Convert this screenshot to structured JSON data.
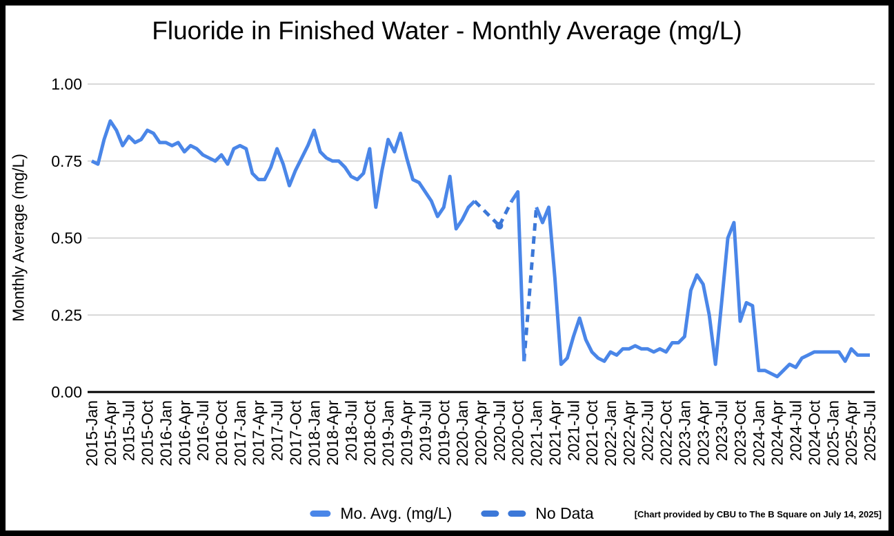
{
  "title": "Fluoride in Finished Water - Monthly Average (mg/L)",
  "footnote": "[Chart provided by CBU to The B Square on July 14, 2025]",
  "legend": {
    "series_label": "Mo. Avg. (mg/L)",
    "no_data_label": "No Data"
  },
  "colors": {
    "line": "#4a86e8",
    "no_data": "#3c78d8",
    "gridline": "#cccccc",
    "axis": "#000000"
  },
  "chart_data": {
    "type": "line",
    "title": "Fluoride in Finished Water - Monthly Average (mg/L)",
    "xlabel": "",
    "ylabel": "Monthly Average (mg/L)",
    "ylim": [
      0,
      1.0
    ],
    "yticks": [
      0,
      0.25,
      0.5,
      0.75,
      1.0
    ],
    "x_tick_interval": 3,
    "grid": true,
    "legend_position": "bottom",
    "series_name": "Mo. Avg. (mg/L)",
    "no_data_note": "Dashed segments bridge months with no data; dot marks isolated 2020-Jul value",
    "marker_point": [
      "2020-Jul",
      0.54
    ],
    "points": [
      [
        "2015-Jan",
        0.75
      ],
      [
        "2015-Feb",
        0.74
      ],
      [
        "2015-Mar",
        0.82
      ],
      [
        "2015-Apr",
        0.88
      ],
      [
        "2015-May",
        0.85
      ],
      [
        "2015-Jun",
        0.8
      ],
      [
        "2015-Jul",
        0.83
      ],
      [
        "2015-Aug",
        0.81
      ],
      [
        "2015-Sep",
        0.82
      ],
      [
        "2015-Oct",
        0.85
      ],
      [
        "2015-Nov",
        0.84
      ],
      [
        "2015-Dec",
        0.81
      ],
      [
        "2016-Jan",
        0.81
      ],
      [
        "2016-Feb",
        0.8
      ],
      [
        "2016-Mar",
        0.81
      ],
      [
        "2016-Apr",
        0.78
      ],
      [
        "2016-May",
        0.8
      ],
      [
        "2016-Jun",
        0.79
      ],
      [
        "2016-Jul",
        0.77
      ],
      [
        "2016-Aug",
        0.76
      ],
      [
        "2016-Sep",
        0.75
      ],
      [
        "2016-Oct",
        0.77
      ],
      [
        "2016-Nov",
        0.74
      ],
      [
        "2016-Dec",
        0.79
      ],
      [
        "2017-Jan",
        0.8
      ],
      [
        "2017-Feb",
        0.79
      ],
      [
        "2017-Mar",
        0.71
      ],
      [
        "2017-Apr",
        0.69
      ],
      [
        "2017-May",
        0.69
      ],
      [
        "2017-Jun",
        0.73
      ],
      [
        "2017-Jul",
        0.79
      ],
      [
        "2017-Aug",
        0.74
      ],
      [
        "2017-Sep",
        0.67
      ],
      [
        "2017-Oct",
        0.72
      ],
      [
        "2017-Nov",
        0.76
      ],
      [
        "2017-Dec",
        0.8
      ],
      [
        "2018-Jan",
        0.85
      ],
      [
        "2018-Feb",
        0.78
      ],
      [
        "2018-Mar",
        0.76
      ],
      [
        "2018-Apr",
        0.75
      ],
      [
        "2018-May",
        0.75
      ],
      [
        "2018-Jun",
        0.73
      ],
      [
        "2018-Jul",
        0.7
      ],
      [
        "2018-Aug",
        0.69
      ],
      [
        "2018-Sep",
        0.71
      ],
      [
        "2018-Oct",
        0.79
      ],
      [
        "2018-Nov",
        0.6
      ],
      [
        "2018-Dec",
        0.72
      ],
      [
        "2019-Jan",
        0.82
      ],
      [
        "2019-Feb",
        0.78
      ],
      [
        "2019-Mar",
        0.84
      ],
      [
        "2019-Apr",
        0.76
      ],
      [
        "2019-May",
        0.69
      ],
      [
        "2019-Jun",
        0.68
      ],
      [
        "2019-Jul",
        0.65
      ],
      [
        "2019-Aug",
        0.62
      ],
      [
        "2019-Sep",
        0.57
      ],
      [
        "2019-Oct",
        0.6
      ],
      [
        "2019-Nov",
        0.7
      ],
      [
        "2019-Dec",
        0.53
      ],
      [
        "2020-Jan",
        0.56
      ],
      [
        "2020-Feb",
        0.6
      ],
      [
        "2020-Mar",
        0.62
      ],
      [
        "2020-Apr",
        null
      ],
      [
        "2020-May",
        null
      ],
      [
        "2020-Jun",
        null
      ],
      [
        "2020-Jul",
        0.54
      ],
      [
        "2020-Aug",
        null
      ],
      [
        "2020-Sep",
        0.62
      ],
      [
        "2020-Oct",
        0.65
      ],
      [
        "2020-Nov",
        0.1
      ],
      [
        "2020-Dec",
        null
      ],
      [
        "2021-Jan",
        0.6
      ],
      [
        "2021-Feb",
        0.55
      ],
      [
        "2021-Mar",
        0.6
      ],
      [
        "2021-Apr",
        0.37
      ],
      [
        "2021-May",
        0.09
      ],
      [
        "2021-Jun",
        0.11
      ],
      [
        "2021-Jul",
        0.18
      ],
      [
        "2021-Aug",
        0.24
      ],
      [
        "2021-Sep",
        0.17
      ],
      [
        "2021-Oct",
        0.13
      ],
      [
        "2021-Nov",
        0.11
      ],
      [
        "2021-Dec",
        0.1
      ],
      [
        "2022-Jan",
        0.13
      ],
      [
        "2022-Feb",
        0.12
      ],
      [
        "2022-Mar",
        0.14
      ],
      [
        "2022-Apr",
        0.14
      ],
      [
        "2022-May",
        0.15
      ],
      [
        "2022-Jun",
        0.14
      ],
      [
        "2022-Jul",
        0.14
      ],
      [
        "2022-Aug",
        0.13
      ],
      [
        "2022-Sep",
        0.14
      ],
      [
        "2022-Oct",
        0.13
      ],
      [
        "2022-Nov",
        0.16
      ],
      [
        "2022-Dec",
        0.16
      ],
      [
        "2023-Jan",
        0.18
      ],
      [
        "2023-Feb",
        0.33
      ],
      [
        "2023-Mar",
        0.38
      ],
      [
        "2023-Apr",
        0.35
      ],
      [
        "2023-May",
        0.25
      ],
      [
        "2023-Jun",
        0.09
      ],
      [
        "2023-Jul",
        0.29
      ],
      [
        "2023-Aug",
        0.5
      ],
      [
        "2023-Sep",
        0.55
      ],
      [
        "2023-Oct",
        0.23
      ],
      [
        "2023-Nov",
        0.29
      ],
      [
        "2023-Dec",
        0.28
      ],
      [
        "2024-Jan",
        0.07
      ],
      [
        "2024-Feb",
        0.07
      ],
      [
        "2024-Mar",
        0.06
      ],
      [
        "2024-Apr",
        0.05
      ],
      [
        "2024-May",
        0.07
      ],
      [
        "2024-Jun",
        0.09
      ],
      [
        "2024-Jul",
        0.08
      ],
      [
        "2024-Aug",
        0.11
      ],
      [
        "2024-Sep",
        0.12
      ],
      [
        "2024-Oct",
        0.13
      ],
      [
        "2024-Nov",
        0.13
      ],
      [
        "2024-Dec",
        0.13
      ],
      [
        "2025-Jan",
        0.13
      ],
      [
        "2025-Feb",
        0.13
      ],
      [
        "2025-Mar",
        0.1
      ],
      [
        "2025-Apr",
        0.14
      ],
      [
        "2025-May",
        0.12
      ],
      [
        "2025-Jun",
        0.12
      ],
      [
        "2025-Jul",
        0.12
      ]
    ]
  }
}
